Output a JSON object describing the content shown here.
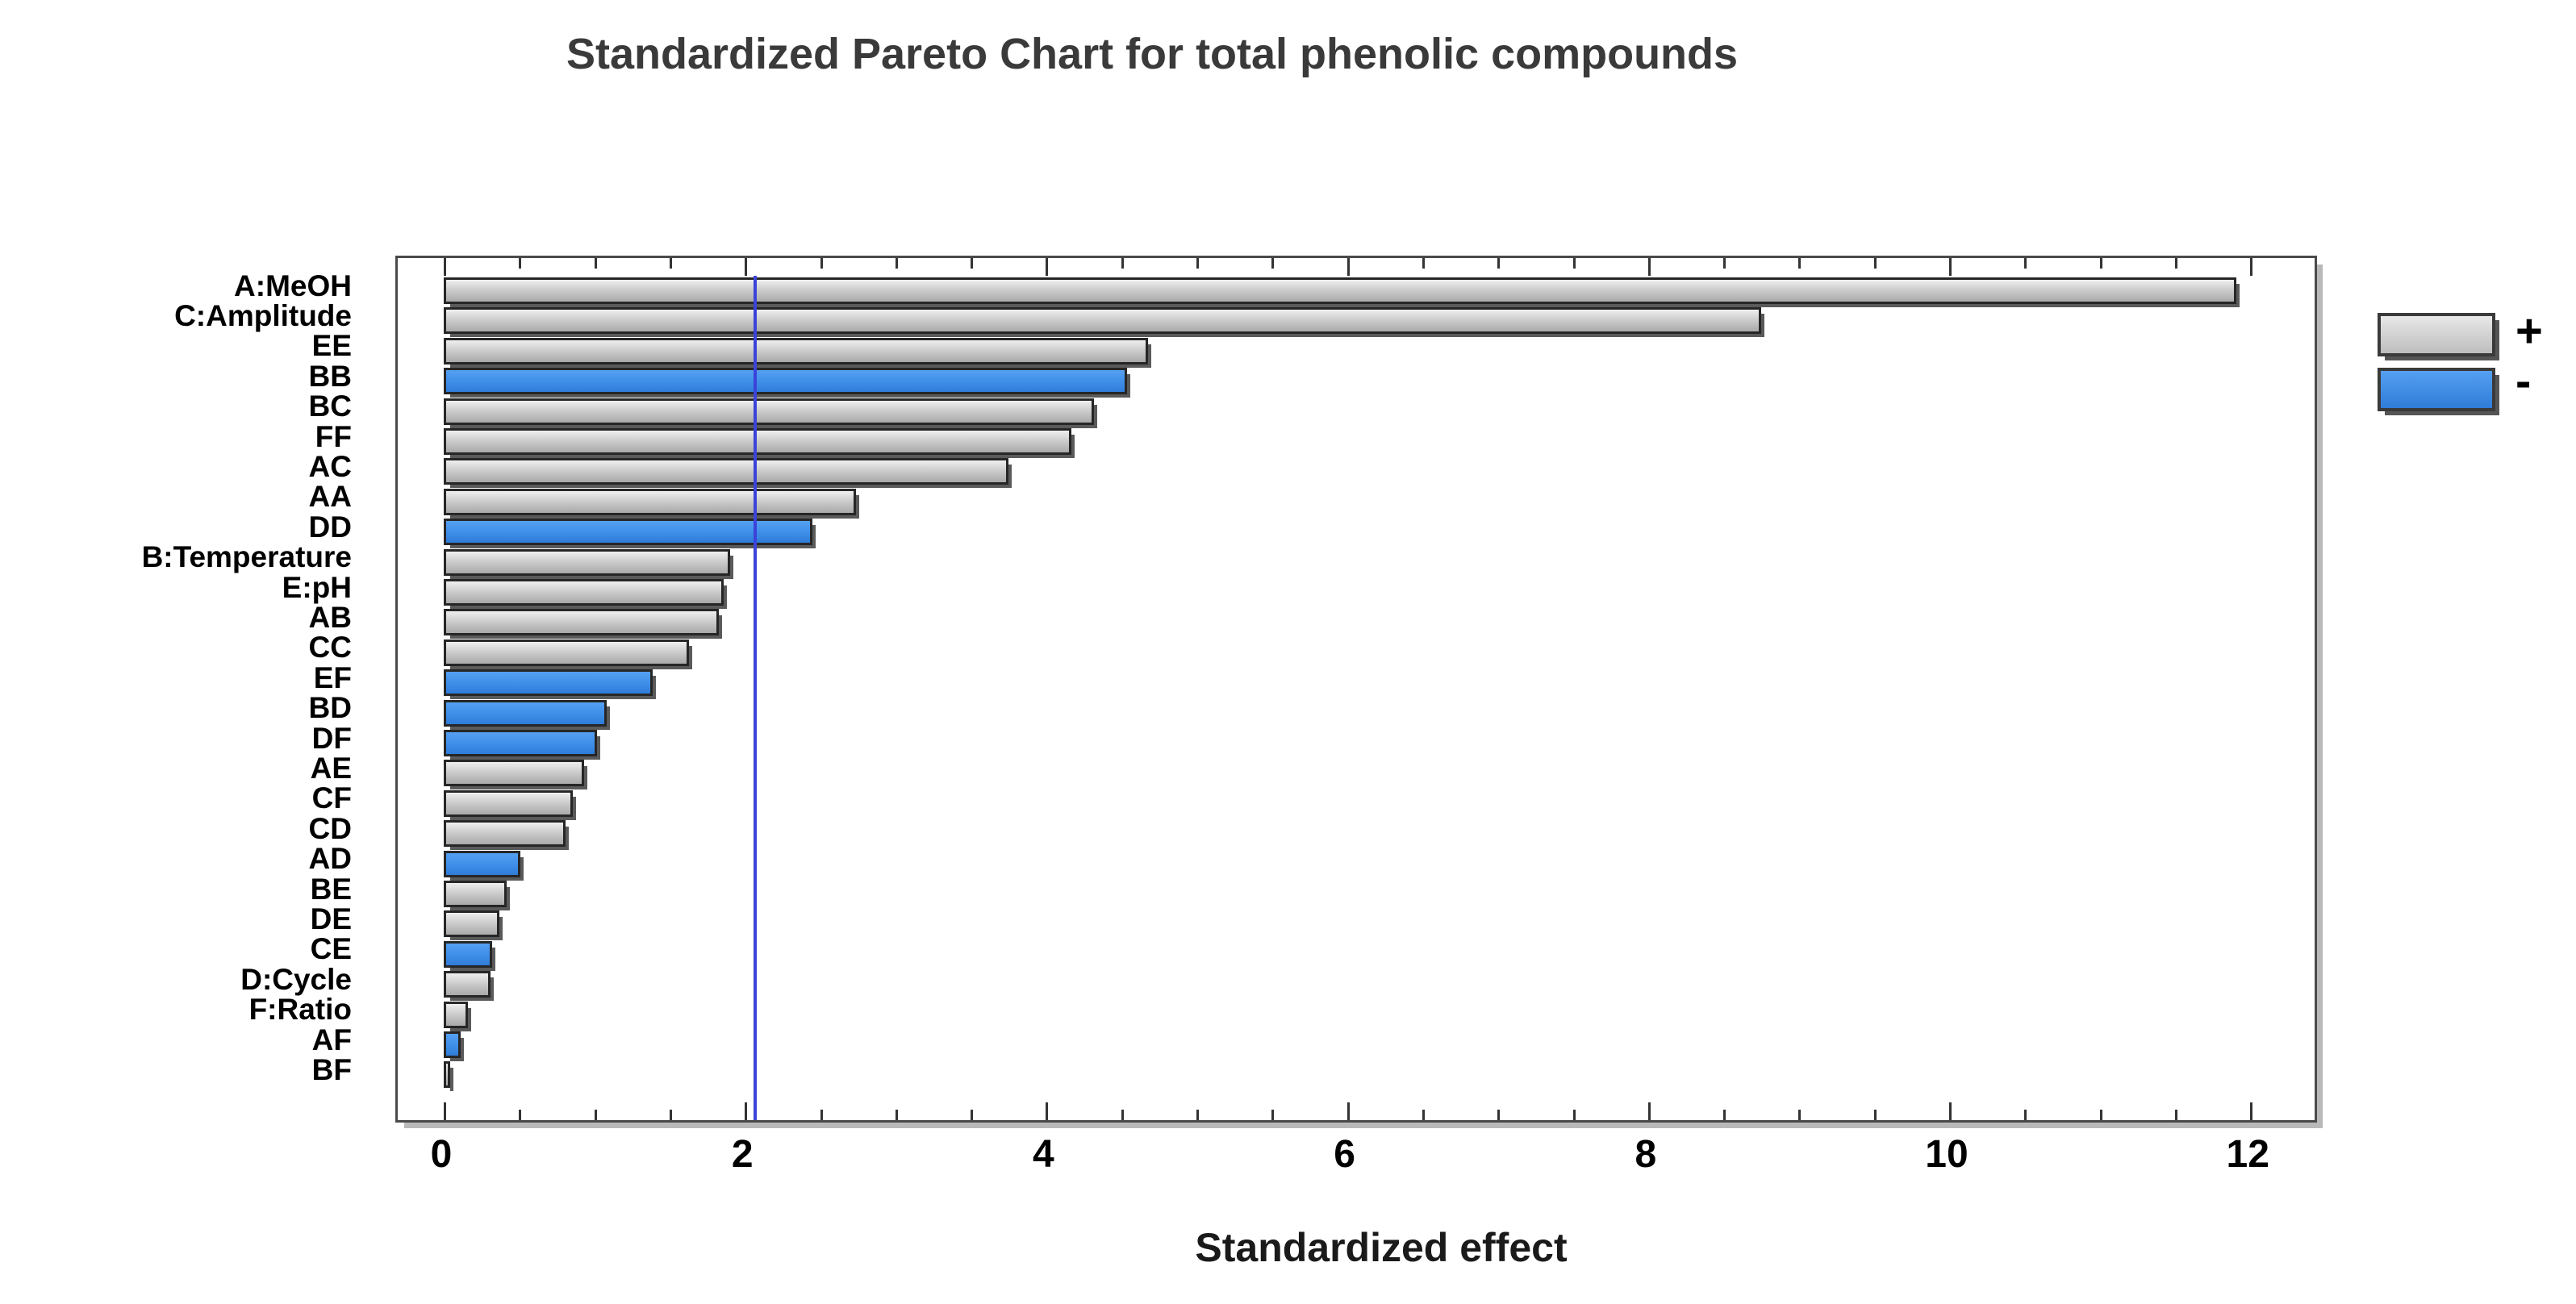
{
  "title": "Standardized Pareto Chart for total phenolic compounds",
  "x_axis_title": "Standardized effect",
  "legend": {
    "plus_label": "+",
    "minus_label": "-"
  },
  "colors": {
    "positive_bar": "#c9c9c9",
    "negative_bar": "#3e8ee8",
    "bar_border": "#262626",
    "reference_line": "#3b43d8",
    "frame_border": "#4a4a4a",
    "title_text": "#3a3a3a",
    "axis_text": "#000000"
  },
  "chart_data": {
    "type": "bar",
    "orientation": "horizontal",
    "title": "Standardized Pareto Chart for total phenolic compounds",
    "xlabel": "Standardized effect",
    "ylabel": "",
    "xlim": [
      0,
      12.4
    ],
    "x_major_ticks": [
      0,
      2,
      4,
      6,
      8,
      10,
      12
    ],
    "x_minor_step": 0.5,
    "grid": false,
    "reference_line": 2.06,
    "legend_position": "right",
    "legend_entries": [
      {
        "label": "+",
        "meaning": "positive effect",
        "color": "#c9c9c9"
      },
      {
        "label": "-",
        "meaning": "negative effect",
        "color": "#3e8ee8"
      }
    ],
    "categories": [
      "A:MeOH",
      "C:Amplitude",
      "EE",
      "BB",
      "BC",
      "FF",
      "AC",
      "AA",
      "DD",
      "B:Temperature",
      "E:pH",
      "AB",
      "CC",
      "EF",
      "BD",
      "DF",
      "AE",
      "CF",
      "CD",
      "AD",
      "BE",
      "DE",
      "CE",
      "D:Cycle",
      "F:Ratio",
      "AF",
      "BF"
    ],
    "values": [
      11.91,
      8.75,
      4.68,
      4.54,
      4.32,
      4.17,
      3.75,
      2.74,
      2.45,
      1.9,
      1.86,
      1.83,
      1.63,
      1.39,
      1.08,
      1.02,
      0.93,
      0.86,
      0.81,
      0.51,
      0.42,
      0.37,
      0.32,
      0.31,
      0.16,
      0.11,
      0.03
    ],
    "signs": [
      "+",
      "+",
      "+",
      "-",
      "+",
      "+",
      "+",
      "+",
      "-",
      "+",
      "+",
      "+",
      "+",
      "-",
      "-",
      "-",
      "+",
      "+",
      "+",
      "-",
      "+",
      "+",
      "-",
      "+",
      "+",
      "-",
      "+"
    ]
  }
}
